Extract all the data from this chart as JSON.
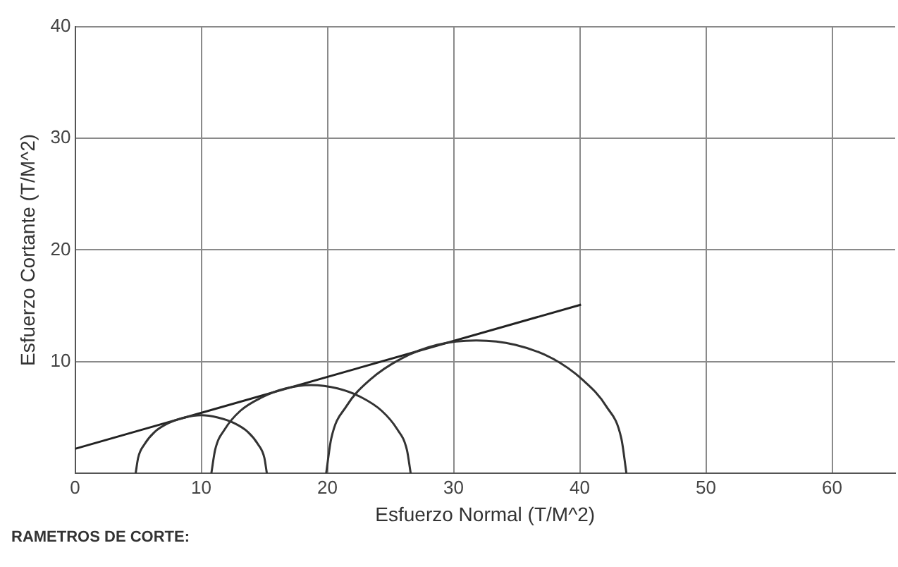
{
  "chart_data": {
    "type": "line",
    "xlabel": "Esfuerzo Normal (T/M^2)",
    "ylabel": "Esfuerzo Cortante (T/M^2)",
    "annotations": [
      "RAMETROS DE CORTE:"
    ],
    "xlim": [
      0,
      65
    ],
    "ylim": [
      0,
      40
    ],
    "xticks": [
      0,
      10,
      20,
      30,
      40,
      50,
      60
    ],
    "yticks": [
      {
        "value": 0,
        "label": null
      },
      10,
      20,
      30,
      40
    ],
    "grid": true,
    "legend": false,
    "marker": "none",
    "line_style": "solid",
    "series": [
      {
        "color": "#333333",
        "x": [
          4.8,
          5.0,
          5.5,
          6.3,
          7.4,
          8.7,
          10,
          11.3,
          12.6,
          13.7,
          14.5,
          15.0,
          15.2
        ],
        "values": [
          0,
          1.4,
          2.6,
          3.7,
          4.5,
          5.0,
          5.2,
          5.0,
          4.5,
          3.7,
          2.6,
          1.4,
          0
        ]
      },
      {
        "color": "#333333",
        "x": [
          10.8,
          11.1,
          11.9,
          13.1,
          14.8,
          16.7,
          18.7,
          20.8,
          22.7,
          24.3,
          25.5,
          26.3,
          26.6
        ],
        "values": [
          0,
          2.1,
          4.0,
          5.6,
          6.8,
          7.6,
          7.9,
          7.6,
          6.8,
          5.6,
          4.0,
          2.1,
          0
        ]
      },
      {
        "color": "#333333",
        "x": [
          19.9,
          20.3,
          21.5,
          23.4,
          25.9,
          28.7,
          31.8,
          34.9,
          37.8,
          40.2,
          42.1,
          43.3,
          43.7
        ],
        "values": [
          0,
          3.1,
          6.0,
          8.4,
          10.3,
          11.5,
          11.9,
          11.5,
          10.3,
          8.4,
          6.0,
          3.1,
          0
        ]
      },
      {
        "color": "#222222",
        "x": [
          0,
          40.1
        ],
        "values": [
          2.2,
          15.1
        ]
      }
    ]
  }
}
